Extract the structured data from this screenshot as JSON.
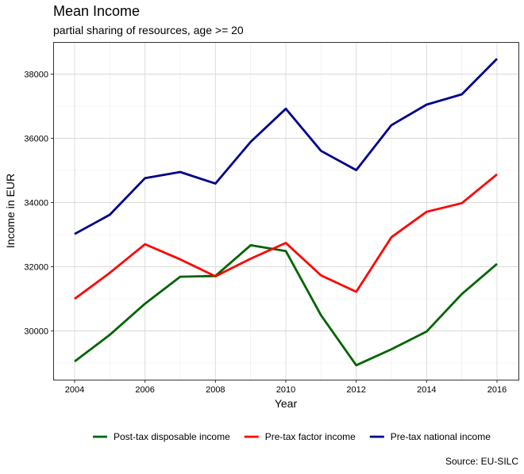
{
  "chart_data": {
    "type": "line",
    "title": "Mean Income",
    "subtitle": "partial sharing of resources, age >= 20",
    "caption": "Source: EU-SILC",
    "xlabel": "Year",
    "ylabel": "Income in EUR",
    "x": [
      2004,
      2005,
      2006,
      2007,
      2008,
      2009,
      2010,
      2011,
      2012,
      2013,
      2014,
      2015,
      2016
    ],
    "xlim": [
      2004,
      2016
    ],
    "ylim": [
      28400,
      38900
    ],
    "x_ticks": [
      2004,
      2006,
      2008,
      2010,
      2012,
      2014,
      2016
    ],
    "y_ticks": [
      30000,
      32000,
      34000,
      36000,
      38000
    ],
    "grid": true,
    "legend_position": "bottom",
    "series": [
      {
        "name": "Post-tax disposable income",
        "color": "#006400",
        "values": [
          29050,
          29880,
          30850,
          31690,
          31710,
          32670,
          32490,
          30490,
          28930,
          29430,
          29980,
          31150,
          32090
        ]
      },
      {
        "name": "Pre-tax factor income",
        "color": "#ff0000",
        "values": [
          31000,
          31810,
          32700,
          32230,
          31700,
          32250,
          32740,
          31730,
          31220,
          32920,
          33710,
          33980,
          34880
        ]
      },
      {
        "name": "Pre-tax national income",
        "color": "#00008b",
        "values": [
          33020,
          33620,
          34760,
          34950,
          34590,
          35890,
          36920,
          35610,
          35010,
          36410,
          37050,
          37370,
          38480
        ]
      }
    ]
  }
}
